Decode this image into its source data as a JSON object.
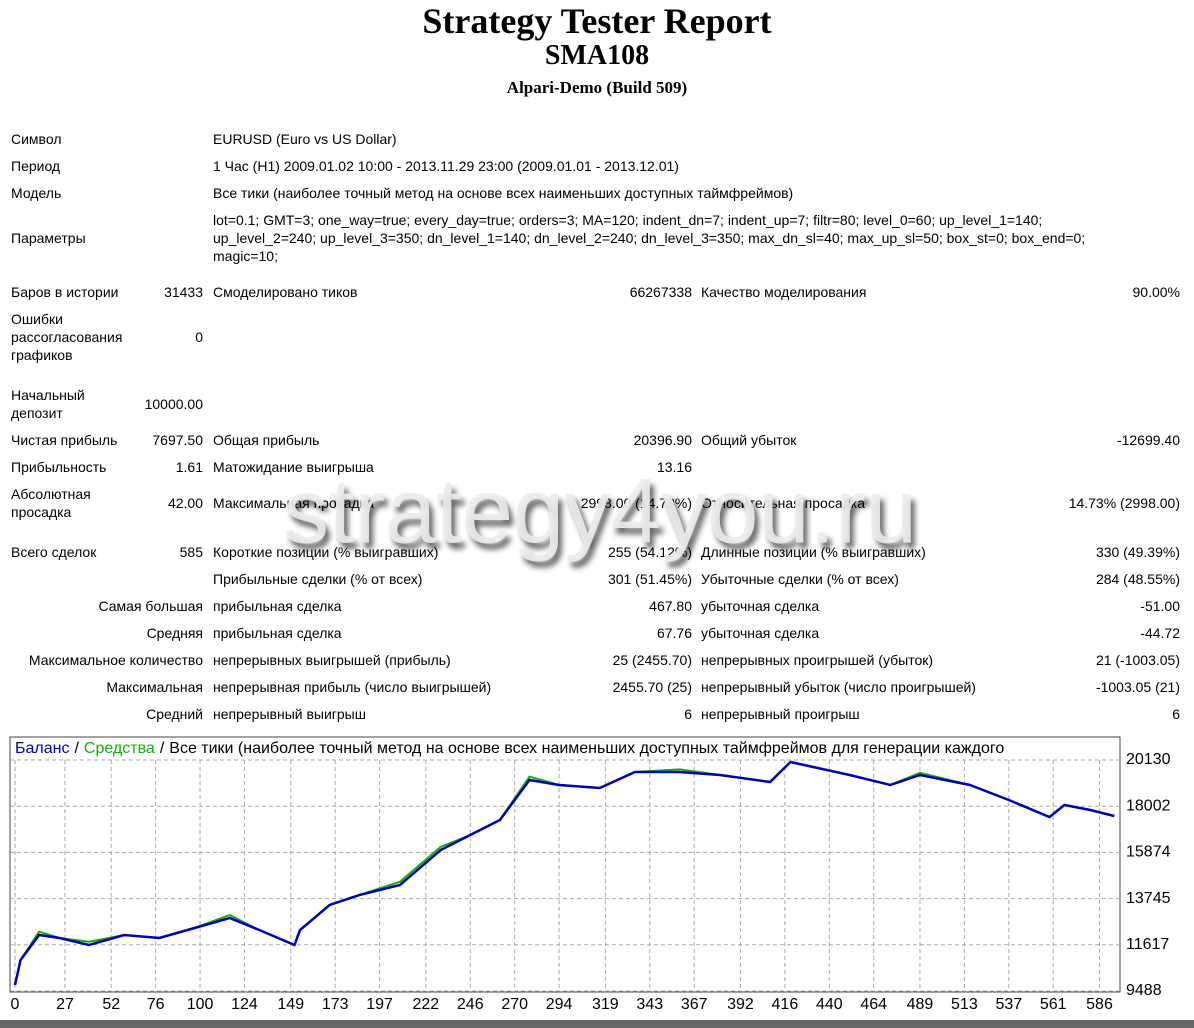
{
  "header": {
    "title": "Strategy Tester Report",
    "name": "SMA108",
    "server": "Alpari-Demo (Build 509)"
  },
  "info": [
    {
      "label": "Символ",
      "value": "EURUSD (Euro vs US Dollar)"
    },
    {
      "label": "Период",
      "value": "1 Час (H1) 2009.01.02 10:00 - 2013.11.29 23:00 (2009.01.01 - 2013.12.01)"
    },
    {
      "label": "Модель",
      "value": "Все тики (наиболее точный метод на основе всех наименьших доступных таймфреймов)"
    },
    {
      "label": "Параметры",
      "lines": [
        "lot=0.1; GMT=3; one_way=true; every_day=true; orders=3; MA=120; indent_dn=7; indent_up=7; filtr=80; level_0=60; up_level_1=140;",
        "up_level_2=240; up_level_3=350; dn_level_1=140; dn_level_2=240; dn_level_3=350; max_dn_sl=40; max_up_sl=50; box_st=0; box_end=0;",
        "magic=10;"
      ]
    }
  ],
  "stats": [
    [
      "Баров в истории",
      "31433",
      "Смоделировано тиков",
      "66267338",
      "Качество моделирования",
      "90.00%"
    ],
    [
      "Ошибки рассогласования графиков",
      "0",
      null,
      null,
      null,
      null
    ],
    [
      "Начальный депозит",
      "10000.00",
      null,
      null,
      null,
      null
    ],
    [
      "Чистая прибыль",
      "7697.50",
      "Общая прибыль",
      "20396.90",
      "Общий убыток",
      "-12699.40"
    ],
    [
      "Прибыльность",
      "1.61",
      "Матожидание выигрыша",
      "13.16",
      null,
      null
    ],
    [
      "Абсолютная просадка",
      "42.00",
      "Максимальная просадка",
      "2998.00 (14.73%)",
      "Относительная просадка",
      "14.73% (2998.00)"
    ],
    [
      "Всего сделок",
      "585",
      "Короткие позиции (% выигравших)",
      "255 (54.12%)",
      "Длинные позиции (% выигравших)",
      "330 (49.39%)"
    ],
    [
      null,
      null,
      "Прибыльные сделки (% от всех)",
      "301 (51.45%)",
      "Убыточные сделки (% от всех)",
      "284 (48.55%)"
    ]
  ],
  "details": [
    {
      "label": "Самая большая",
      "cells": [
        "прибыльная сделка",
        "467.80",
        "убыточная сделка",
        "-51.00"
      ]
    },
    {
      "label": "Средняя",
      "cells": [
        "прибыльная сделка",
        "67.76",
        "убыточная сделка",
        "-44.72"
      ]
    },
    {
      "label": "Максимальное количество",
      "cells": [
        "непрерывных выигрышей (прибыль)",
        "25 (2455.70)",
        "непрерывных проигрышей (убыток)",
        "21 (-1003.05)"
      ]
    },
    {
      "label": "Максимальная",
      "cells": [
        "непрерывная прибыль (число выигрышей)",
        "2455.70 (25)",
        "непрерывный убыток (число проигрышей)",
        "-1003.05 (21)"
      ]
    },
    {
      "label": "Средний",
      "cells": [
        "непрерывный выигрыш",
        "6",
        "непрерывный проигрыш",
        "6"
      ]
    }
  ],
  "watermark": "strategy4you.ru",
  "chart_data": {
    "type": "line",
    "separator": "/",
    "subtitle": "Все тики (наиболее точный метод на основе всех наименьших доступных таймфреймов для генерации каждого",
    "x": [
      0,
      3,
      13,
      24,
      40,
      59,
      78,
      97,
      116,
      132,
      151,
      154,
      170,
      186,
      208,
      230,
      246,
      262,
      278,
      294,
      316,
      335,
      359,
      381,
      408,
      419,
      451,
      473,
      489,
      516,
      537,
      559,
      567,
      581,
      594
    ],
    "series": [
      {
        "name": "Средства",
        "color": "#10b010",
        "values": [
          9764,
          10916,
          12220,
          11930,
          11760,
          12068,
          11930,
          12390,
          12990,
          12298,
          11607,
          12298,
          13450,
          13910,
          14520,
          16130,
          16675,
          17366,
          19360,
          18979,
          18840,
          19577,
          19700,
          19439,
          19116,
          20038,
          19439,
          18979,
          19540,
          18979,
          18287,
          17504,
          18057,
          17827,
          17550
        ]
      },
      {
        "name": "Баланс",
        "color": "#0000b0",
        "values": [
          9764,
          10916,
          12068,
          11930,
          11607,
          12068,
          11930,
          12390,
          12851,
          12298,
          11607,
          12298,
          13450,
          13910,
          14371,
          15984,
          16675,
          17366,
          19209,
          18979,
          18840,
          19577,
          19577,
          19439,
          19116,
          20038,
          19439,
          18979,
          19439,
          18979,
          18287,
          17504,
          18057,
          17827,
          17550
        ]
      }
    ],
    "xlim": [
      0,
      596
    ],
    "ylim": [
      9488,
      20130
    ],
    "xticks": [
      0,
      27,
      52,
      76,
      100,
      124,
      149,
      173,
      197,
      222,
      246,
      270,
      294,
      319,
      343,
      367,
      392,
      416,
      440,
      464,
      489,
      513,
      537,
      561,
      586
    ],
    "yticks": [
      9488,
      11617,
      13745,
      15874,
      18002,
      20130
    ],
    "grid": true
  }
}
